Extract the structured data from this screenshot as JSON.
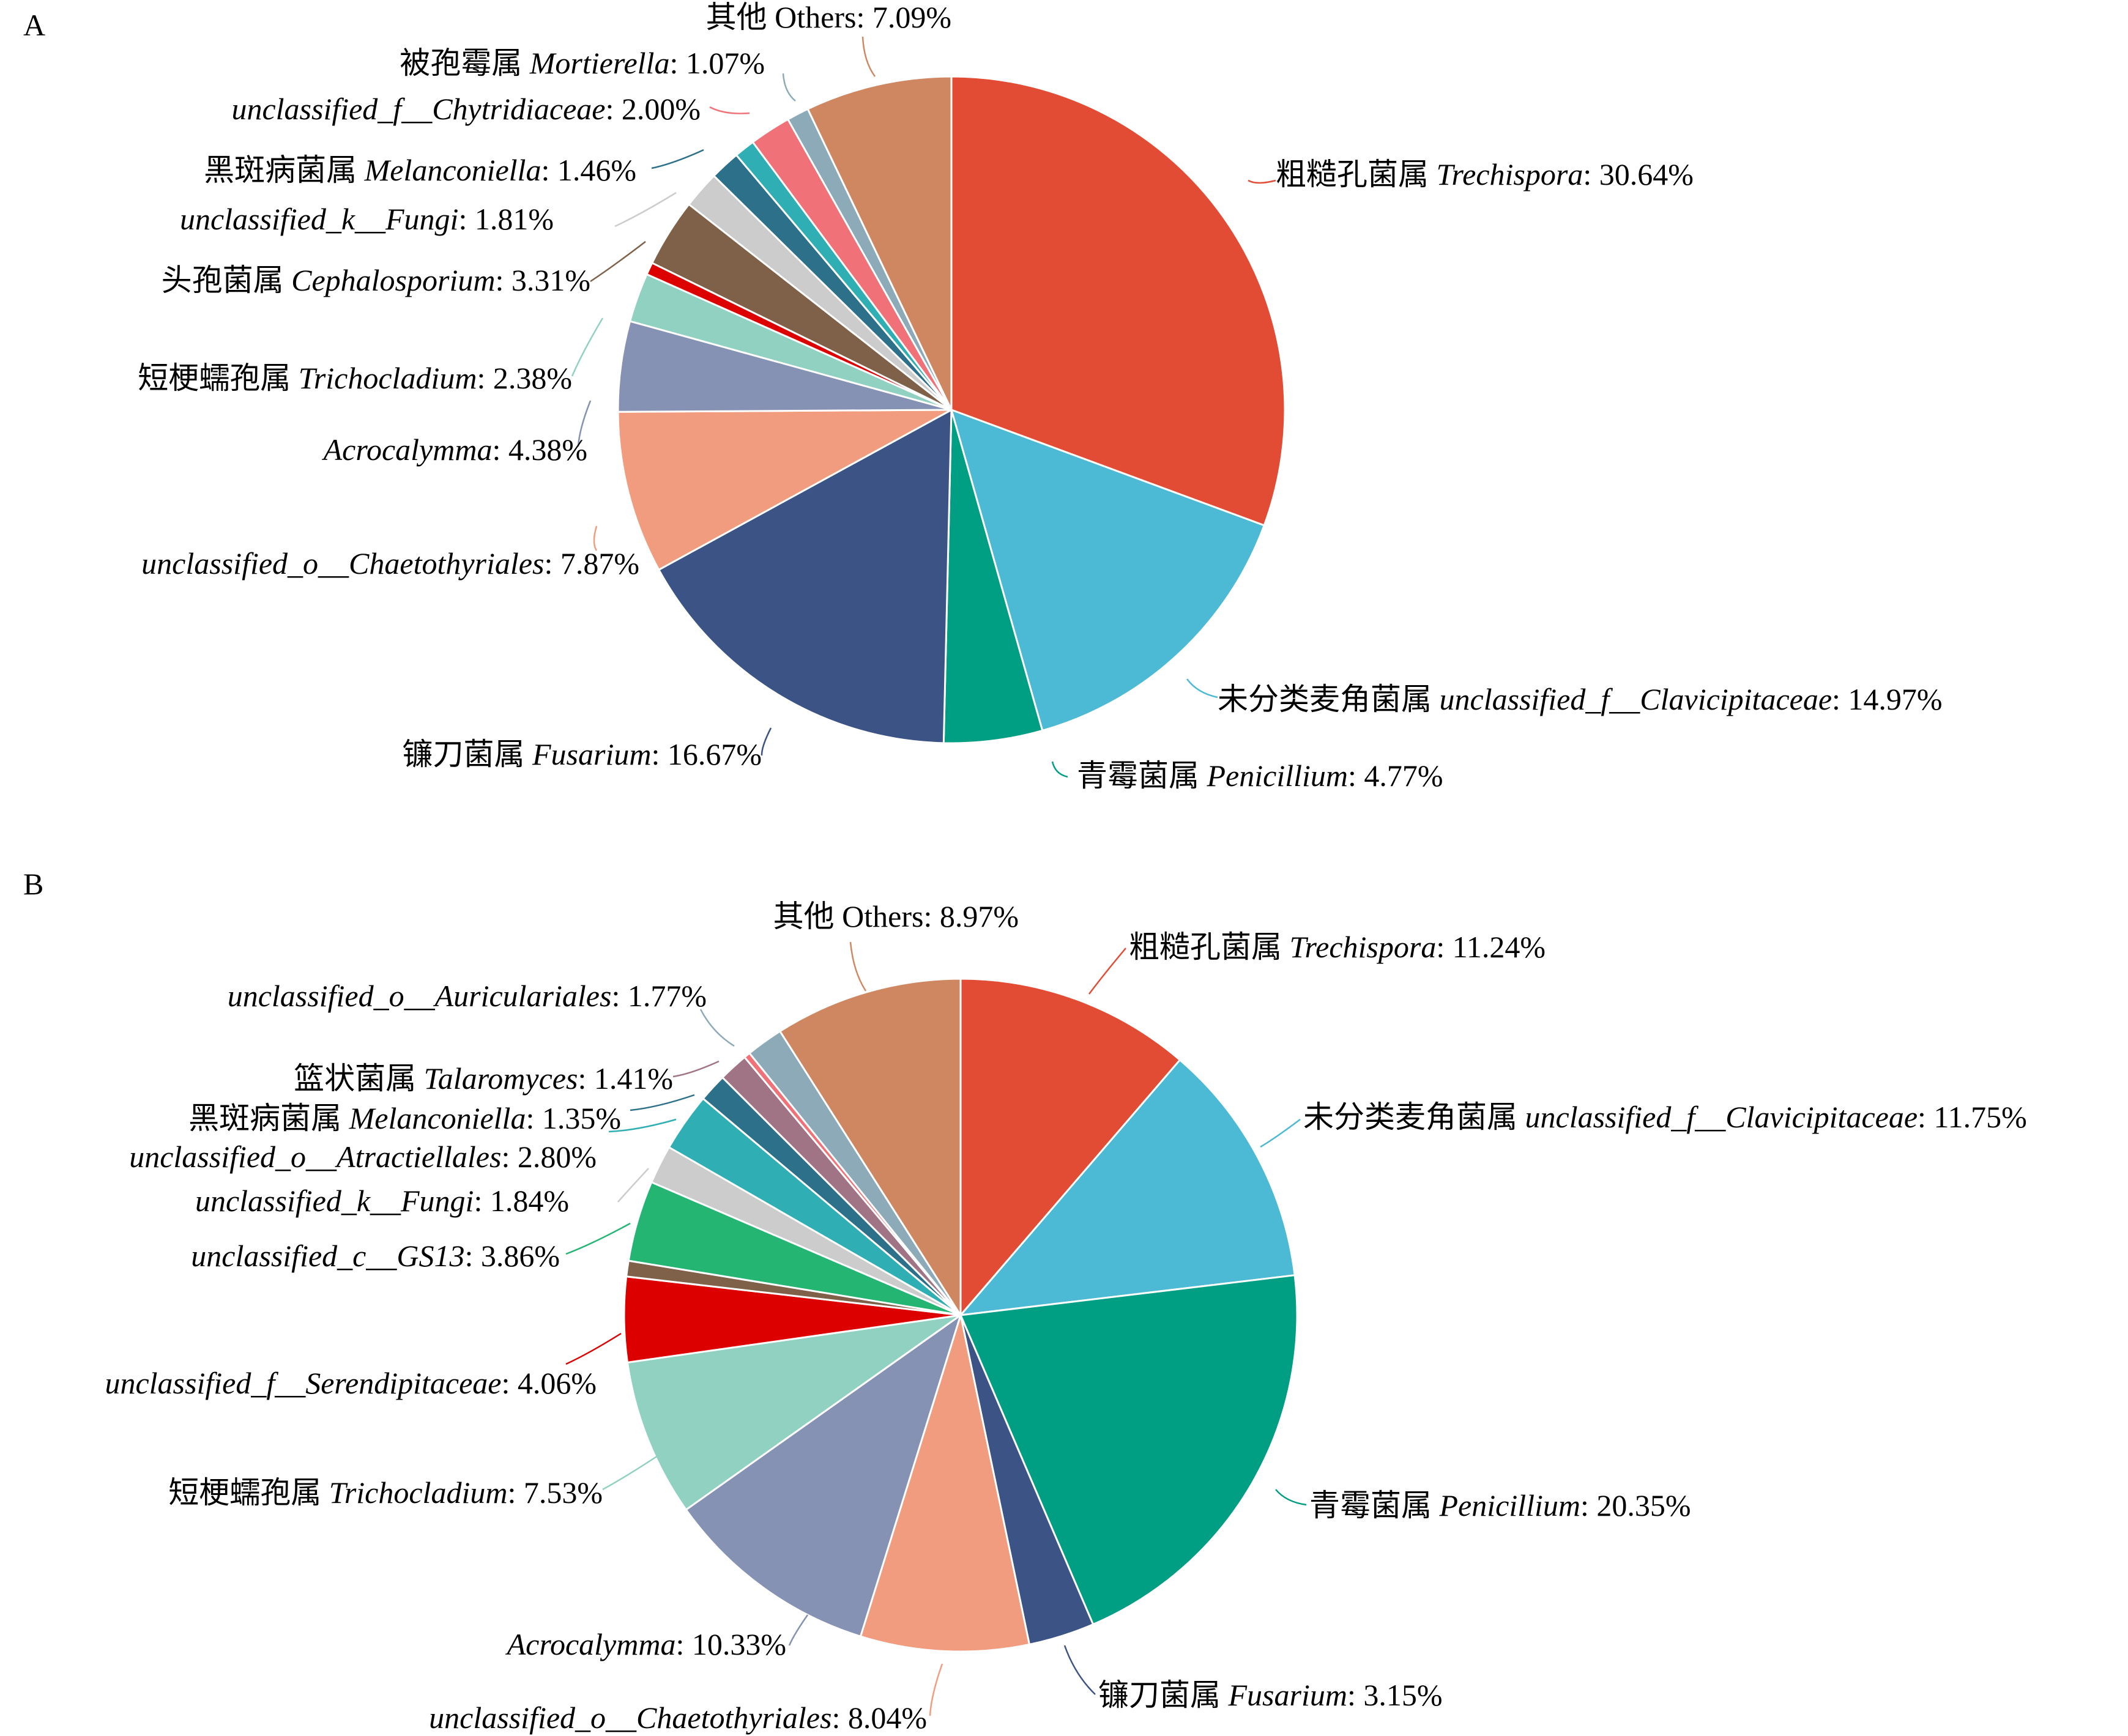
{
  "chart_data": [
    {
      "type": "pie",
      "panel": "A",
      "slices": [
        {
          "cn": "粗糙孔菌属",
          "genus": "Trechispora",
          "pct": "30.64%",
          "value": 30.64,
          "color": "#E34C34"
        },
        {
          "cn": "未分类麦角菌属",
          "genus": "unclassified_f__Clavicipitaceae",
          "pct": "14.97%",
          "value": 14.97,
          "color": "#4CB9D5"
        },
        {
          "cn": "青霉菌属",
          "genus": "Penicillium",
          "pct": "4.77%",
          "value": 4.77,
          "color": "#009E83"
        },
        {
          "cn": "镰刀菌属",
          "genus": "Fusarium",
          "pct": "16.67%",
          "value": 16.67,
          "color": "#3C5386"
        },
        {
          "cn": "",
          "genus": "unclassified_o__Chaetothyriales",
          "pct": "7.87%",
          "value": 7.87,
          "color": "#F19C7F"
        },
        {
          "cn": "",
          "genus": "Acrocalymma",
          "pct": "4.38%",
          "value": 4.38,
          "color": "#8592B3"
        },
        {
          "cn": "短梗蠕孢属",
          "genus": "Trichocladium",
          "pct": "2.38%",
          "value": 2.38,
          "color": "#91D1C2"
        },
        {
          "cn": "",
          "genus": "",
          "pct": "",
          "value": 0.6,
          "color": "#DC0000"
        },
        {
          "cn": "头孢菌属",
          "genus": "Cephalosporium",
          "pct": "3.31%",
          "value": 3.31,
          "color": "#7E6148"
        },
        {
          "cn": "",
          "genus": "unclassified_k__Fungi",
          "pct": "1.81%",
          "value": 1.81,
          "color": "#CCCCCC"
        },
        {
          "cn": "黑斑病菌属",
          "genus": "Melanconiella",
          "pct": "1.46%",
          "value": 1.46,
          "color": "#2C7089"
        },
        {
          "cn": "",
          "genus": "",
          "pct": "",
          "value": 1.0,
          "color": "#2FAFB3"
        },
        {
          "cn": "",
          "genus": "unclassified_f__Chytridiaceae",
          "pct": "2.00%",
          "value": 2.0,
          "color": "#F07177"
        },
        {
          "cn": "被孢霉属",
          "genus": "Mortierella",
          "pct": "1.07%",
          "value": 1.07,
          "color": "#8DAAB8"
        },
        {
          "cn": "其他",
          "genus": "Others",
          "pct": "7.09%",
          "value": 7.09,
          "color": "#CF8762"
        }
      ]
    },
    {
      "type": "pie",
      "panel": "B",
      "slices": [
        {
          "cn": "粗糙孔菌属",
          "genus": "Trechispora",
          "pct": "11.24%",
          "value": 11.24,
          "color": "#E34C34"
        },
        {
          "cn": "未分类麦角菌属",
          "genus": "unclassified_f__Clavicipitaceae",
          "pct": "11.75%",
          "value": 11.75,
          "color": "#4CB9D5"
        },
        {
          "cn": "青霉菌属",
          "genus": "Penicillium",
          "pct": "20.35%",
          "value": 20.35,
          "color": "#009E83"
        },
        {
          "cn": "镰刀菌属",
          "genus": "Fusarium",
          "pct": "3.15%",
          "value": 3.15,
          "color": "#3C5386"
        },
        {
          "cn": "",
          "genus": "unclassified_o__Chaetothyriales",
          "pct": "8.04%",
          "value": 8.04,
          "color": "#F19C7F"
        },
        {
          "cn": "",
          "genus": "Acrocalymma",
          "pct": "10.33%",
          "value": 10.33,
          "color": "#8592B3"
        },
        {
          "cn": "短梗蠕孢属",
          "genus": "Trichocladium",
          "pct": "7.53%",
          "value": 7.53,
          "color": "#91D1C2"
        },
        {
          "cn": "",
          "genus": "unclassified_f__Serendipitaceae",
          "pct": "4.06%",
          "value": 4.06,
          "color": "#DC0000"
        },
        {
          "cn": "",
          "genus": "",
          "pct": "",
          "value": 0.75,
          "color": "#7E6148"
        },
        {
          "cn": "",
          "genus": "unclassified_c__GS13",
          "pct": "3.86%",
          "value": 3.86,
          "color": "#25B573"
        },
        {
          "cn": "",
          "genus": "unclassified_k__Fungi",
          "pct": "1.84%",
          "value": 1.84,
          "color": "#CCCCCC"
        },
        {
          "cn": "",
          "genus": "unclassified_o__Atractiellales",
          "pct": "2.80%",
          "value": 2.8,
          "color": "#2FAFB3"
        },
        {
          "cn": "黑斑病菌属",
          "genus": "Melanconiella",
          "pct": "1.35%",
          "value": 1.35,
          "color": "#2C7089"
        },
        {
          "cn": "篮状菌属",
          "genus": "Talaromyces",
          "pct": "1.41%",
          "value": 1.41,
          "color": "#A07385"
        },
        {
          "cn": "",
          "genus": "",
          "pct": "",
          "value": 0.3,
          "color": "#F07177"
        },
        {
          "cn": "",
          "genus": "unclassified_o__Auriculariales",
          "pct": "1.77%",
          "value": 1.77,
          "color": "#8DAAB8"
        },
        {
          "cn": "其他",
          "genus": "Others",
          "pct": "8.97%",
          "value": 8.97,
          "color": "#CF8762"
        }
      ]
    }
  ]
}
